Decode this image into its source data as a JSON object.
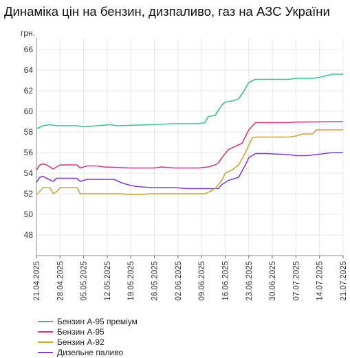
{
  "title": "Динаміка цін на бензин, дизпаливо, газ на АЗС України",
  "chart_data": {
    "type": "line",
    "title": "Динаміка цін на бензин, дизпаливо, газ на АЗС України",
    "ylabel": "грн.",
    "xlabel": "",
    "ylim": [
      46,
      67
    ],
    "yticks": [
      48,
      50,
      52,
      54,
      56,
      58,
      60,
      62,
      64,
      66
    ],
    "xticks": [
      "21.04.2025",
      "28.04.2025",
      "05.05.2025",
      "12.05.2025",
      "19.05.2025",
      "26.05.2025",
      "02.06.2025",
      "09.06.2025",
      "16.06.2025",
      "23.06.2025",
      "30.06.2025",
      "07.07.2025",
      "14.07.2025",
      "21.07.2025"
    ],
    "grid": true,
    "legend_position": "bottom-left",
    "x_start": "2025-04-21",
    "x_end": "2025-07-21",
    "series": [
      {
        "name": "Бензин А-95 преміум",
        "color": "#3dbd98",
        "points": [
          [
            "2025-04-21",
            58.3
          ],
          [
            "2025-04-23",
            58.6
          ],
          [
            "2025-04-25",
            58.7
          ],
          [
            "2025-04-27",
            58.6
          ],
          [
            "2025-05-03",
            58.6
          ],
          [
            "2025-05-05",
            58.5
          ],
          [
            "2025-05-09",
            58.6
          ],
          [
            "2025-05-13",
            58.7
          ],
          [
            "2025-05-15",
            58.6
          ],
          [
            "2025-05-25",
            58.7
          ],
          [
            "2025-06-01",
            58.8
          ],
          [
            "2025-06-08",
            58.8
          ],
          [
            "2025-06-10",
            58.9
          ],
          [
            "2025-06-11",
            59.5
          ],
          [
            "2025-06-13",
            59.6
          ],
          [
            "2025-06-15",
            60.6
          ],
          [
            "2025-06-16",
            60.9
          ],
          [
            "2025-06-18",
            61.0
          ],
          [
            "2025-06-20",
            61.2
          ],
          [
            "2025-06-22",
            62.2
          ],
          [
            "2025-06-23",
            62.8
          ],
          [
            "2025-06-25",
            63.1
          ],
          [
            "2025-07-05",
            63.1
          ],
          [
            "2025-07-07",
            63.2
          ],
          [
            "2025-07-12",
            63.2
          ],
          [
            "2025-07-14",
            63.3
          ],
          [
            "2025-07-18",
            63.6
          ],
          [
            "2025-07-21",
            63.6
          ]
        ]
      },
      {
        "name": "Бензин А-95",
        "color": "#d0387a",
        "points": [
          [
            "2025-04-21",
            54.3
          ],
          [
            "2025-04-22",
            54.8
          ],
          [
            "2025-04-23",
            54.9
          ],
          [
            "2025-04-24",
            54.8
          ],
          [
            "2025-04-26",
            54.4
          ],
          [
            "2025-04-28",
            54.8
          ],
          [
            "2025-05-01",
            54.8
          ],
          [
            "2025-05-03",
            54.8
          ],
          [
            "2025-05-04",
            54.5
          ],
          [
            "2025-05-06",
            54.7
          ],
          [
            "2025-05-09",
            54.7
          ],
          [
            "2025-05-11",
            54.6
          ],
          [
            "2025-05-19",
            54.5
          ],
          [
            "2025-05-26",
            54.5
          ],
          [
            "2025-05-28",
            54.6
          ],
          [
            "2025-06-01",
            54.5
          ],
          [
            "2025-06-08",
            54.5
          ],
          [
            "2025-06-11",
            54.6
          ],
          [
            "2025-06-13",
            54.8
          ],
          [
            "2025-06-14",
            55.0
          ],
          [
            "2025-06-15",
            55.5
          ],
          [
            "2025-06-17",
            56.3
          ],
          [
            "2025-06-19",
            56.6
          ],
          [
            "2025-06-21",
            56.9
          ],
          [
            "2025-06-23",
            58.2
          ],
          [
            "2025-06-25",
            58.9
          ],
          [
            "2025-07-05",
            58.9
          ],
          [
            "2025-07-07",
            58.95
          ],
          [
            "2025-07-21",
            59.0
          ]
        ]
      },
      {
        "name": "Бензин А-92",
        "color": "#c9a43a",
        "points": [
          [
            "2025-04-21",
            51.9
          ],
          [
            "2025-04-23",
            52.6
          ],
          [
            "2025-04-25",
            52.6
          ],
          [
            "2025-04-26",
            52.0
          ],
          [
            "2025-04-27",
            52.2
          ],
          [
            "2025-04-28",
            52.6
          ],
          [
            "2025-05-03",
            52.6
          ],
          [
            "2025-05-04",
            52.0
          ],
          [
            "2025-05-06",
            52.0
          ],
          [
            "2025-05-16",
            52.0
          ],
          [
            "2025-05-20",
            51.9
          ],
          [
            "2025-05-25",
            52.0
          ],
          [
            "2025-06-10",
            52.0
          ],
          [
            "2025-06-12",
            52.3
          ],
          [
            "2025-06-13",
            52.5
          ],
          [
            "2025-06-15",
            53.3
          ],
          [
            "2025-06-16",
            54.0
          ],
          [
            "2025-06-18",
            54.3
          ],
          [
            "2025-06-20",
            54.8
          ],
          [
            "2025-06-22",
            56.0
          ],
          [
            "2025-06-24",
            57.4
          ],
          [
            "2025-06-25",
            57.5
          ],
          [
            "2025-07-05",
            57.5
          ],
          [
            "2025-07-07",
            57.6
          ],
          [
            "2025-07-09",
            57.8
          ],
          [
            "2025-07-12",
            57.8
          ],
          [
            "2025-07-13",
            58.2
          ],
          [
            "2025-07-21",
            58.2
          ]
        ]
      },
      {
        "name": "Дизельне паливо",
        "color": "#7c3fc9",
        "points": [
          [
            "2025-04-21",
            53.1
          ],
          [
            "2025-04-22",
            53.6
          ],
          [
            "2025-04-23",
            53.7
          ],
          [
            "2025-04-24",
            53.5
          ],
          [
            "2025-04-26",
            53.2
          ],
          [
            "2025-04-27",
            53.5
          ],
          [
            "2025-05-03",
            53.5
          ],
          [
            "2025-05-04",
            53.2
          ],
          [
            "2025-05-06",
            53.4
          ],
          [
            "2025-05-14",
            53.4
          ],
          [
            "2025-05-16",
            53.1
          ],
          [
            "2025-05-19",
            52.8
          ],
          [
            "2025-05-21",
            52.7
          ],
          [
            "2025-05-25",
            52.6
          ],
          [
            "2025-06-01",
            52.6
          ],
          [
            "2025-06-05",
            52.5
          ],
          [
            "2025-06-10",
            52.5
          ],
          [
            "2025-06-14",
            52.5
          ],
          [
            "2025-06-15",
            52.9
          ],
          [
            "2025-06-17",
            53.3
          ],
          [
            "2025-06-20",
            53.6
          ],
          [
            "2025-06-22",
            54.8
          ],
          [
            "2025-06-23",
            55.5
          ],
          [
            "2025-06-25",
            55.9
          ],
          [
            "2025-06-28",
            55.9
          ],
          [
            "2025-07-05",
            55.8
          ],
          [
            "2025-07-07",
            55.7
          ],
          [
            "2025-07-10",
            55.7
          ],
          [
            "2025-07-13",
            55.8
          ],
          [
            "2025-07-18",
            56.0
          ],
          [
            "2025-07-21",
            56.0
          ]
        ]
      }
    ]
  }
}
